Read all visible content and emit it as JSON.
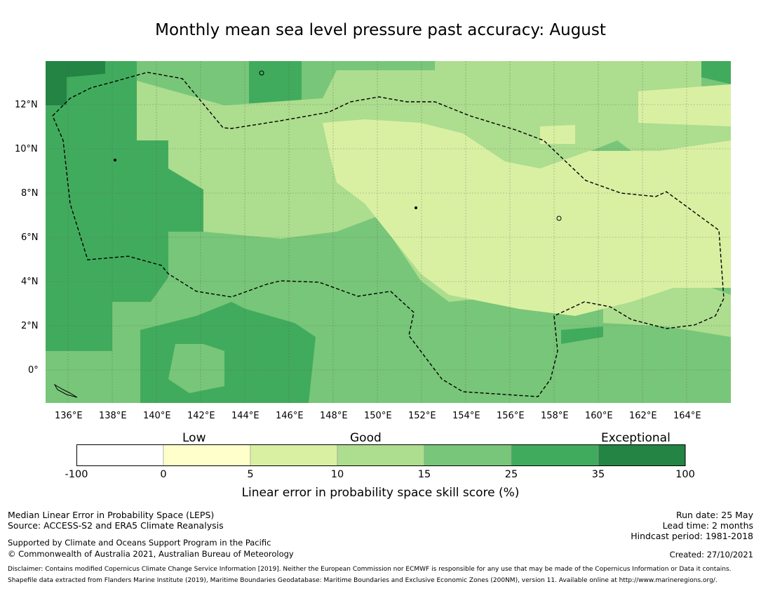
{
  "title": "Monthly mean sea level pressure past accuracy: August",
  "map": {
    "lon_ticks": [
      "136°E",
      "138°E",
      "140°E",
      "142°E",
      "144°E",
      "146°E",
      "148°E",
      "150°E",
      "152°E",
      "154°E",
      "156°E",
      "158°E",
      "160°E",
      "162°E",
      "164°E"
    ],
    "lat_ticks": [
      "12°N",
      "10°N",
      "8°N",
      "6°N",
      "4°N",
      "2°N",
      "0°"
    ],
    "boundary_style": "dashed black EEZ outline",
    "regions_fill": "green shades by skill category"
  },
  "colorbar": {
    "categories": [
      "Low",
      "Good",
      "Exceptional"
    ],
    "ticks": [
      "-100",
      "0",
      "5",
      "10",
      "15",
      "25",
      "35",
      "100"
    ],
    "colors": [
      "#ffffff",
      "#ffffcc",
      "#d9f0a3",
      "#addd8e",
      "#78c679",
      "#41ab5d",
      "#238443"
    ],
    "label": "Linear error in probability space skill score (%)"
  },
  "footer": {
    "line1": "Median Linear Error in Probability Space (LEPS)",
    "line2": "Source: ACCESS-S2 and ERA5 Climate Reanalysis",
    "line3": "Supported by Climate and Oceans Support Program in the Pacific",
    "line4": "© Commonwealth of Australia 2021, Australian Bureau of Meteorology",
    "run_date": "Run date: 25 May",
    "lead_time": "Lead time: 2 months",
    "hindcast": "Hindcast period: 1981-2018",
    "created": "Created: 27/10/2021",
    "disclaimer": "Disclaimer: Contains modified Copernicus Climate Change Service Information [2019]. Neither the European Commission nor ECMWF is responsible for any use that may be made of the Copernicus Information or Data it contains.",
    "shapefile": "Shapefile data extracted from Flanders Marine Institute (2019), Maritime Boundaries Geodatabase: Maritime Boundaries and Exclusive Economic Zones (200NM), version 11. Available online at http://www.marineregions.org/."
  }
}
